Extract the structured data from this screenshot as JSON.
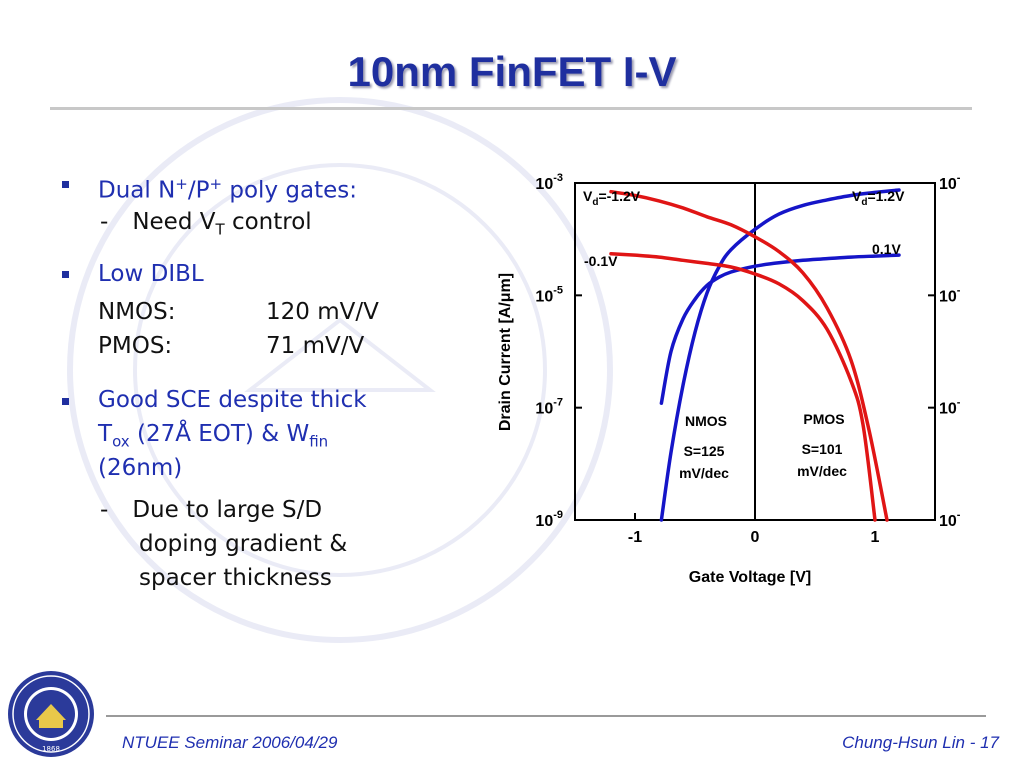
{
  "slide": {
    "title": "10nm FinFET I-V",
    "footer_left": "NTUEE Seminar 2006/04/29",
    "footer_right_author": "Chung-Hsun Lin",
    "footer_right_sep": " - ",
    "page_number": "17",
    "seal_year": "1868"
  },
  "bullets": {
    "b1": {
      "text": "Dual N",
      "sup1": "+",
      "mid": "/P",
      "sup2": "+",
      "end": " poly gates:"
    },
    "b1_sub": {
      "dash": "-",
      "text": "Need V",
      "sub": "T",
      "end": " control"
    },
    "b2": {
      "text": "Low DIBL"
    },
    "b2_rows": [
      {
        "label": "NMOS:",
        "value": "120 mV/V"
      },
      {
        "label": "PMOS:",
        "value": "71 mV/V"
      }
    ],
    "b3": {
      "line1": "Good SCE despite thick",
      "t": "T",
      "t_sub": "ox",
      "mid": " (27Å EOT) & W",
      "w_sub": "fin",
      "line3": "(26nm)"
    },
    "b3_sub": {
      "dash": "-",
      "line1": "Due to large S/D",
      "line2": "doping gradient &",
      "line3": "spacer thickness"
    }
  },
  "colors": {
    "title": "#1f2f9f",
    "bullet_text": "#1f2fb0",
    "nmos": "#1515c8",
    "pmos": "#e01515"
  },
  "chart_data": {
    "type": "line",
    "xlabel": "Gate Voltage [V]",
    "ylabel": "Drain Current [A/μm]",
    "xlim": [
      -1.5,
      1.5
    ],
    "ylog": true,
    "ylim": [
      1e-09,
      0.001
    ],
    "x_ticks": [
      {
        "value": -1,
        "label": "-1"
      },
      {
        "value": 0,
        "label": "0"
      },
      {
        "value": 1,
        "label": "1"
      }
    ],
    "y_ticks": [
      {
        "value": 0.001,
        "base": "10",
        "exp": "-3"
      },
      {
        "value": 1e-05,
        "base": "10",
        "exp": "-5"
      },
      {
        "value": 1e-07,
        "base": "10",
        "exp": "-7"
      },
      {
        "value": 1e-09,
        "base": "10",
        "exp": "-9"
      }
    ],
    "series": [
      {
        "device": "nmos",
        "vd": "1.2V",
        "color": "#1515c8",
        "points": [
          [
            -0.78,
            1e-09
          ],
          [
            -0.7,
            1.6e-08
          ],
          [
            -0.6,
            2.5e-07
          ],
          [
            -0.5,
            2.2e-06
          ],
          [
            -0.4,
            1.1e-05
          ],
          [
            -0.3,
            3.2e-05
          ],
          [
            -0.2,
            6.5e-05
          ],
          [
            0,
            0.00015
          ],
          [
            0.2,
            0.00028
          ],
          [
            0.4,
            0.0004
          ],
          [
            0.6,
            0.0005
          ],
          [
            0.8,
            0.0006
          ],
          [
            1.0,
            0.00068
          ],
          [
            1.2,
            0.00075
          ]
        ]
      },
      {
        "device": "nmos",
        "vd": "0.1V",
        "color": "#1515c8",
        "points": [
          [
            -0.78,
            1.2e-07
          ],
          [
            -0.7,
            1e-06
          ],
          [
            -0.6,
            3.8e-06
          ],
          [
            -0.5,
            8.5e-06
          ],
          [
            -0.4,
            1.5e-05
          ],
          [
            -0.3,
            2.1e-05
          ],
          [
            -0.2,
            2.6e-05
          ],
          [
            0,
            3.3e-05
          ],
          [
            0.2,
            3.8e-05
          ],
          [
            0.4,
            4.2e-05
          ],
          [
            0.6,
            4.5e-05
          ],
          [
            0.8,
            4.8e-05
          ],
          [
            1.0,
            5e-05
          ],
          [
            1.2,
            5.2e-05
          ]
        ]
      },
      {
        "device": "pmos",
        "vd": "-1.2V",
        "color": "#e01515",
        "points": [
          [
            -1.2,
            0.0007
          ],
          [
            -1.0,
            0.0006
          ],
          [
            -0.8,
            0.00048
          ],
          [
            -0.6,
            0.00036
          ],
          [
            -0.4,
            0.00025
          ],
          [
            -0.2,
            0.00018
          ],
          [
            0,
            0.00011
          ],
          [
            0.2,
            6e-05
          ],
          [
            0.4,
            2.5e-05
          ],
          [
            0.6,
            6e-06
          ],
          [
            0.8,
            7e-07
          ],
          [
            0.95,
            4e-08
          ],
          [
            1.1,
            1e-09
          ]
        ]
      },
      {
        "device": "pmos",
        "vd": "-0.1V",
        "color": "#e01515",
        "points": [
          [
            -1.2,
            5.5e-05
          ],
          [
            -1.0,
            5.2e-05
          ],
          [
            -0.8,
            4.8e-05
          ],
          [
            -0.6,
            4.2e-05
          ],
          [
            -0.4,
            3.7e-05
          ],
          [
            -0.2,
            3.2e-05
          ],
          [
            0,
            2.4e-05
          ],
          [
            0.2,
            1.6e-05
          ],
          [
            0.4,
            8e-06
          ],
          [
            0.6,
            2.5e-06
          ],
          [
            0.8,
            3e-07
          ],
          [
            0.9,
            5e-08
          ],
          [
            1.0,
            1e-09
          ]
        ]
      }
    ],
    "annotations": {
      "vd_neg": {
        "base": "V",
        "sub": "d",
        "rest": "=-1.2V"
      },
      "vd_pos": {
        "base": "V",
        "sub": "d",
        "rest": "=1.2V"
      },
      "neg_low": "-0.1V",
      "pos_low": "0.1V",
      "nmos_label": "NMOS",
      "nmos_s1": "S=125",
      "nmos_s2": "mV/dec",
      "pmos_label": "PMOS",
      "pmos_s1": "S=101",
      "pmos_s2": "mV/dec"
    }
  }
}
